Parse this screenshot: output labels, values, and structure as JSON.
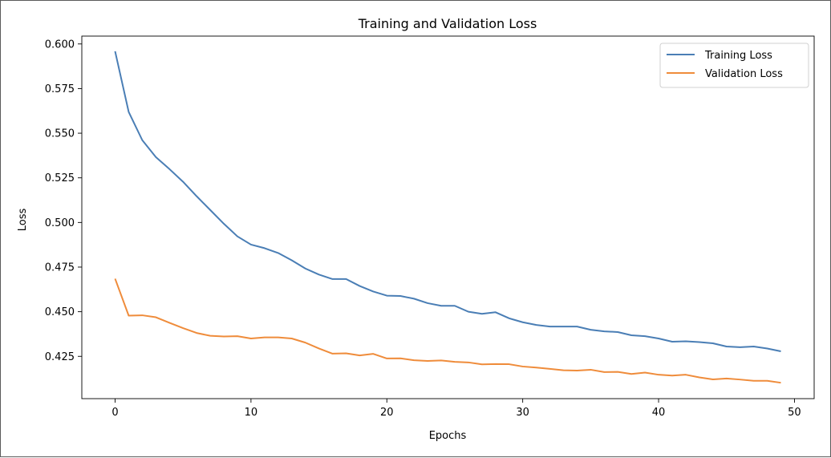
{
  "chart_data": {
    "type": "line",
    "title": "Training and Validation Loss",
    "xlabel": "Epochs",
    "ylabel": "Loss",
    "xlim": [
      -2.45,
      51.45
    ],
    "ylim": [
      0.4013,
      0.6044
    ],
    "xticks": [
      "0",
      "10",
      "20",
      "30",
      "40",
      "50"
    ],
    "yticks": [
      "0.425",
      "0.450",
      "0.475",
      "0.500",
      "0.525",
      "0.550",
      "0.575",
      "0.600"
    ],
    "grid": false,
    "legend_position": "top-right",
    "x": [
      0,
      1,
      2,
      3,
      4,
      5,
      6,
      7,
      8,
      9,
      10,
      11,
      12,
      13,
      14,
      15,
      16,
      17,
      18,
      19,
      20,
      21,
      22,
      23,
      24,
      25,
      26,
      27,
      28,
      29,
      30,
      31,
      32,
      33,
      34,
      35,
      36,
      37,
      38,
      39,
      40,
      41,
      42,
      43,
      44,
      45,
      46,
      47,
      48,
      49
    ],
    "series": [
      {
        "name": "Training Loss",
        "color": "#4a7eb5",
        "values": [
          0.5959,
          0.5619,
          0.5461,
          0.5366,
          0.5299,
          0.5228,
          0.5147,
          0.507,
          0.4993,
          0.4922,
          0.4876,
          0.4856,
          0.4829,
          0.4788,
          0.4742,
          0.4708,
          0.4683,
          0.4683,
          0.4644,
          0.4613,
          0.459,
          0.4588,
          0.4573,
          0.4548,
          0.4533,
          0.4533,
          0.45,
          0.4488,
          0.4497,
          0.4463,
          0.4441,
          0.4426,
          0.4417,
          0.4417,
          0.4417,
          0.4399,
          0.439,
          0.4386,
          0.4368,
          0.4363,
          0.435,
          0.4332,
          0.4334,
          0.433,
          0.4323,
          0.4305,
          0.4301,
          0.4305,
          0.4294,
          0.4278
        ]
      },
      {
        "name": "Validation Loss",
        "color": "#ef8c3b",
        "values": [
          0.4685,
          0.4478,
          0.448,
          0.4469,
          0.4438,
          0.4408,
          0.4381,
          0.4365,
          0.4361,
          0.4363,
          0.435,
          0.4356,
          0.4356,
          0.435,
          0.4327,
          0.4294,
          0.4265,
          0.4267,
          0.4255,
          0.4264,
          0.4238,
          0.4239,
          0.4228,
          0.4224,
          0.4227,
          0.4219,
          0.4216,
          0.4205,
          0.4207,
          0.4206,
          0.4193,
          0.4187,
          0.418,
          0.4172,
          0.417,
          0.4175,
          0.4162,
          0.4163,
          0.4151,
          0.4159,
          0.4147,
          0.4142,
          0.4147,
          0.4132,
          0.4121,
          0.4126,
          0.412,
          0.4113,
          0.4113,
          0.4102
        ]
      }
    ]
  }
}
